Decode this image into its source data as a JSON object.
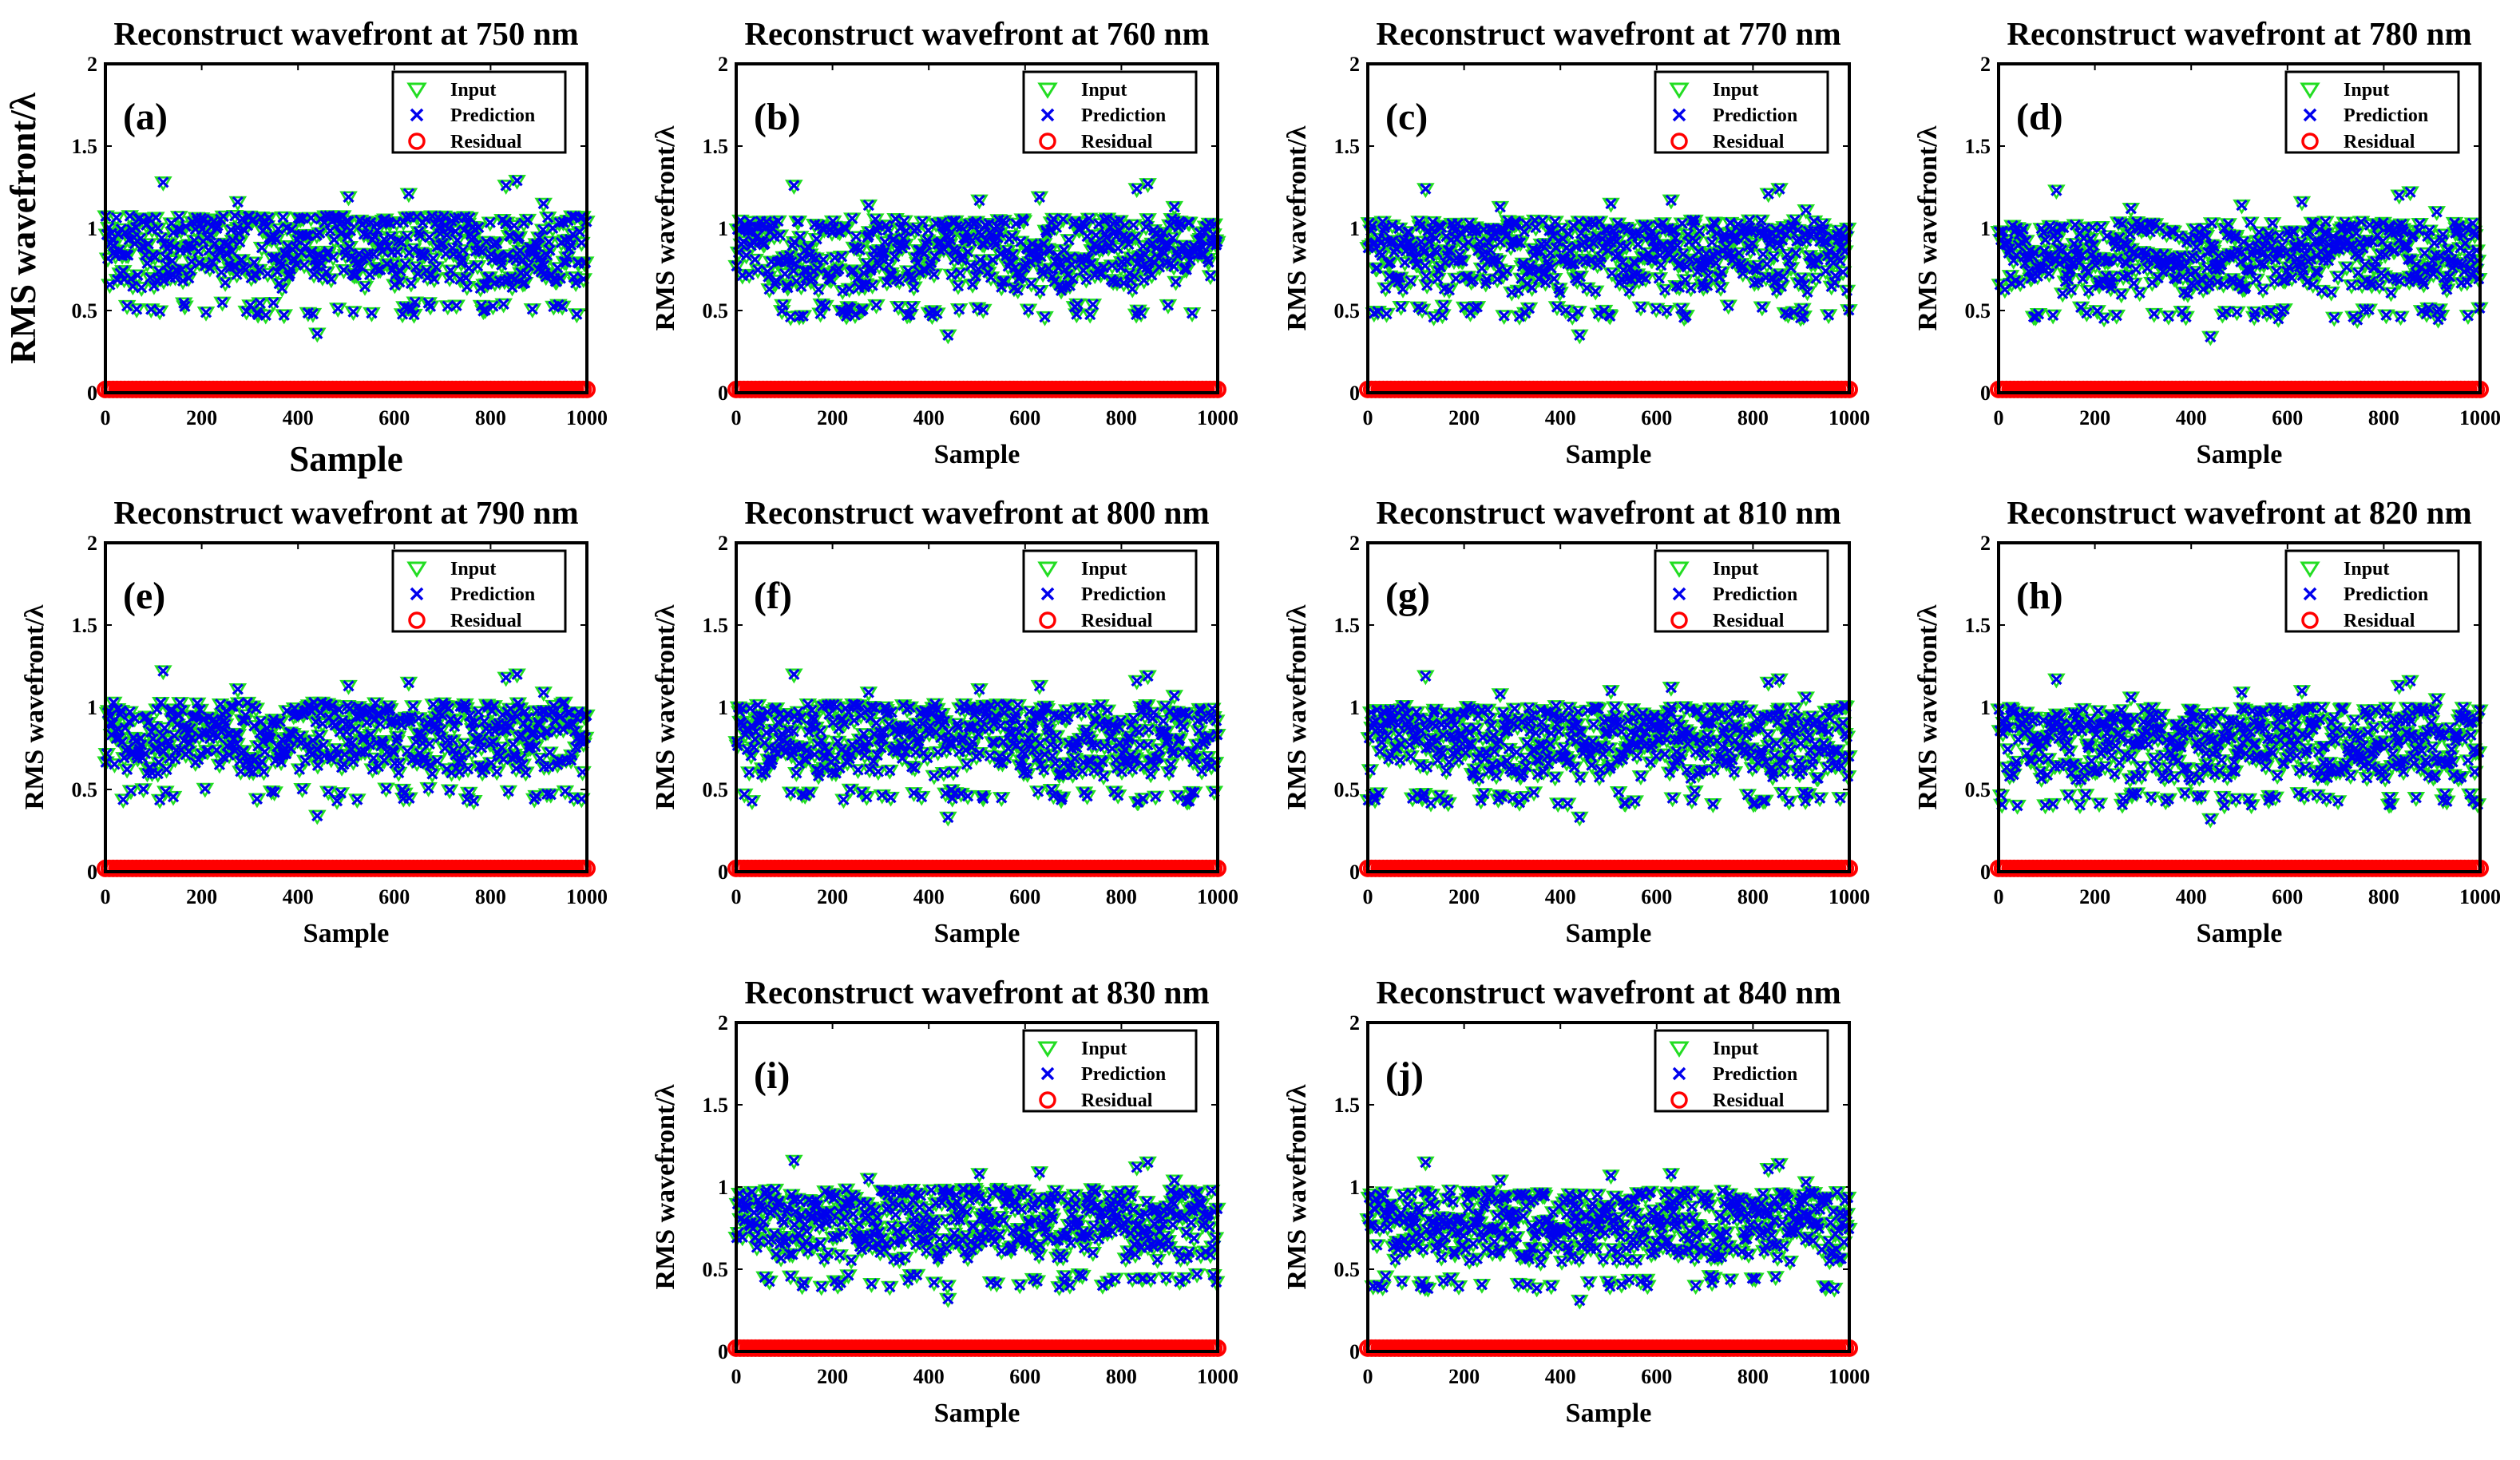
{
  "figure": {
    "markers": {
      "input": "green-triangle-down",
      "prediction": "blue-x",
      "residual": "red-circle"
    },
    "colors": {
      "input": "#22dd22",
      "prediction": "#0000ee",
      "residual": "#ff0000",
      "axis": "#000000"
    }
  },
  "chart_data": [
    {
      "panel": "(a)",
      "title": "Reconstruct wavefront at 750 nm",
      "type": "scatter",
      "xlabel": "Sample",
      "ylabel": "RMS wavefront/λ",
      "xlim": [
        0,
        1000
      ],
      "ylim": [
        0,
        2
      ],
      "xticks": [
        "0",
        "200",
        "400",
        "600",
        "800",
        "1000"
      ],
      "yticks": [
        "0",
        "0.5",
        "1",
        "1.5",
        "2"
      ],
      "legend": [
        "Input",
        "Prediction",
        "Residual"
      ],
      "legend_position": "top-right",
      "band": {
        "low": 0.55,
        "high": 1.08
      },
      "outliers": [
        [
          120,
          1.28
        ],
        [
          275,
          1.16
        ],
        [
          440,
          0.36
        ],
        [
          505,
          1.19
        ],
        [
          630,
          1.21
        ],
        [
          832,
          1.26
        ],
        [
          855,
          1.29
        ],
        [
          910,
          1.15
        ]
      ],
      "residual_level": 0.02,
      "n_samples": 1000
    },
    {
      "panel": "(b)",
      "title": "Reconstruct wavefront at 760 nm",
      "type": "scatter",
      "xlabel": "Sample",
      "ylabel": "RMS wavefront/λ",
      "xlim": [
        0,
        1000
      ],
      "ylim": [
        0,
        2
      ],
      "xticks": [
        "0",
        "200",
        "400",
        "600",
        "800",
        "1000"
      ],
      "yticks": [
        "0",
        "0.5",
        "1",
        "1.5",
        "2"
      ],
      "legend": [
        "Input",
        "Prediction",
        "Residual"
      ],
      "legend_position": "top-right",
      "band": {
        "low": 0.54,
        "high": 1.06
      },
      "outliers": [
        [
          120,
          1.26
        ],
        [
          275,
          1.14
        ],
        [
          440,
          0.35
        ],
        [
          505,
          1.17
        ],
        [
          630,
          1.19
        ],
        [
          832,
          1.24
        ],
        [
          855,
          1.27
        ],
        [
          910,
          1.13
        ]
      ],
      "residual_level": 0.02,
      "n_samples": 1000
    },
    {
      "panel": "(c)",
      "title": "Reconstruct wavefront at 770 nm",
      "type": "scatter",
      "xlabel": "Sample",
      "ylabel": "RMS wavefront/λ",
      "xlim": [
        0,
        1000
      ],
      "ylim": [
        0,
        2
      ],
      "xticks": [
        "0",
        "200",
        "400",
        "600",
        "800",
        "1000"
      ],
      "yticks": [
        "0",
        "0.5",
        "1",
        "1.5",
        "2"
      ],
      "legend": [
        "Input",
        "Prediction",
        "Residual"
      ],
      "legend_position": "top-right",
      "band": {
        "low": 0.53,
        "high": 1.05
      },
      "outliers": [
        [
          120,
          1.24
        ],
        [
          275,
          1.13
        ],
        [
          440,
          0.35
        ],
        [
          505,
          1.15
        ],
        [
          630,
          1.17
        ],
        [
          832,
          1.21
        ],
        [
          855,
          1.24
        ],
        [
          910,
          1.11
        ]
      ],
      "residual_level": 0.02,
      "n_samples": 1000
    },
    {
      "panel": "(d)",
      "title": "Reconstruct wavefront at 780 nm",
      "type": "scatter",
      "xlabel": "Sample",
      "ylabel": "RMS wavefront/λ",
      "xlim": [
        0,
        1000
      ],
      "ylim": [
        0,
        2
      ],
      "xticks": [
        "0",
        "200",
        "400",
        "600",
        "800",
        "1000"
      ],
      "yticks": [
        "0",
        "0.5",
        "1",
        "1.5",
        "2"
      ],
      "legend": [
        "Input",
        "Prediction",
        "Residual"
      ],
      "legend_position": "top-right",
      "band": {
        "low": 0.52,
        "high": 1.04
      },
      "outliers": [
        [
          120,
          1.23
        ],
        [
          275,
          1.12
        ],
        [
          440,
          0.34
        ],
        [
          505,
          1.14
        ],
        [
          630,
          1.16
        ],
        [
          832,
          1.2
        ],
        [
          855,
          1.22
        ],
        [
          910,
          1.1
        ]
      ],
      "residual_level": 0.02,
      "n_samples": 1000
    },
    {
      "panel": "(e)",
      "title": "Reconstruct wavefront at 790 nm",
      "type": "scatter",
      "xlabel": "Sample",
      "ylabel": "RMS wavefront/λ",
      "xlim": [
        0,
        1000
      ],
      "ylim": [
        0,
        2
      ],
      "xticks": [
        "0",
        "200",
        "400",
        "600",
        "800",
        "1000"
      ],
      "yticks": [
        "0",
        "0.5",
        "1",
        "1.5",
        "2"
      ],
      "legend": [
        "Input",
        "Prediction",
        "Residual"
      ],
      "legend_position": "top-right",
      "band": {
        "low": 0.51,
        "high": 1.03
      },
      "outliers": [
        [
          120,
          1.22
        ],
        [
          275,
          1.11
        ],
        [
          440,
          0.34
        ],
        [
          505,
          1.13
        ],
        [
          630,
          1.15
        ],
        [
          832,
          1.18
        ],
        [
          855,
          1.2
        ],
        [
          910,
          1.09
        ]
      ],
      "residual_level": 0.02,
      "n_samples": 1000
    },
    {
      "panel": "(f)",
      "title": "Reconstruct wavefront at 800 nm",
      "type": "scatter",
      "xlabel": "Sample",
      "ylabel": "RMS wavefront/λ",
      "xlim": [
        0,
        1000
      ],
      "ylim": [
        0,
        2
      ],
      "xticks": [
        "0",
        "200",
        "400",
        "600",
        "800",
        "1000"
      ],
      "yticks": [
        "0",
        "0.5",
        "1",
        "1.5",
        "2"
      ],
      "legend": [
        "Input",
        "Prediction",
        "Residual"
      ],
      "legend_position": "top-right",
      "band": {
        "low": 0.5,
        "high": 1.02
      },
      "outliers": [
        [
          120,
          1.2
        ],
        [
          275,
          1.09
        ],
        [
          440,
          0.33
        ],
        [
          505,
          1.11
        ],
        [
          630,
          1.13
        ],
        [
          832,
          1.16
        ],
        [
          855,
          1.19
        ],
        [
          910,
          1.07
        ]
      ],
      "residual_level": 0.02,
      "n_samples": 1000
    },
    {
      "panel": "(g)",
      "title": "Reconstruct wavefront at 810 nm",
      "type": "scatter",
      "xlabel": "Sample",
      "ylabel": "RMS wavefront/λ",
      "xlim": [
        0,
        1000
      ],
      "ylim": [
        0,
        2
      ],
      "xticks": [
        "0",
        "200",
        "400",
        "600",
        "800",
        "1000"
      ],
      "yticks": [
        "0",
        "0.5",
        "1",
        "1.5",
        "2"
      ],
      "legend": [
        "Input",
        "Prediction",
        "Residual"
      ],
      "legend_position": "top-right",
      "band": {
        "low": 0.49,
        "high": 1.01
      },
      "outliers": [
        [
          120,
          1.19
        ],
        [
          275,
          1.08
        ],
        [
          440,
          0.33
        ],
        [
          505,
          1.1
        ],
        [
          630,
          1.12
        ],
        [
          832,
          1.15
        ],
        [
          855,
          1.17
        ],
        [
          910,
          1.06
        ]
      ],
      "residual_level": 0.02,
      "n_samples": 1000
    },
    {
      "panel": "(h)",
      "title": "Reconstruct wavefront at 820 nm",
      "type": "scatter",
      "xlabel": "Sample",
      "ylabel": "RMS wavefront/λ",
      "xlim": [
        0,
        1000
      ],
      "ylim": [
        0,
        2
      ],
      "xticks": [
        "0",
        "200",
        "400",
        "600",
        "800",
        "1000"
      ],
      "yticks": [
        "0",
        "0.5",
        "1",
        "1.5",
        "2"
      ],
      "legend": [
        "Input",
        "Prediction",
        "Residual"
      ],
      "legend_position": "top-right",
      "band": {
        "low": 0.48,
        "high": 1.0
      },
      "outliers": [
        [
          120,
          1.17
        ],
        [
          275,
          1.06
        ],
        [
          440,
          0.32
        ],
        [
          505,
          1.09
        ],
        [
          630,
          1.1
        ],
        [
          832,
          1.13
        ],
        [
          855,
          1.16
        ],
        [
          910,
          1.05
        ]
      ],
      "residual_level": 0.02,
      "n_samples": 1000
    },
    {
      "panel": "(i)",
      "title": "Reconstruct wavefront at 830 nm",
      "type": "scatter",
      "xlabel": "Sample",
      "ylabel": "RMS wavefront/λ",
      "xlim": [
        0,
        1000
      ],
      "ylim": [
        0,
        2
      ],
      "xticks": [
        "0",
        "200",
        "400",
        "600",
        "800",
        "1000"
      ],
      "yticks": [
        "0",
        "0.5",
        "1",
        "1.5",
        "2"
      ],
      "legend": [
        "Input",
        "Prediction",
        "Residual"
      ],
      "legend_position": "top-right",
      "band": {
        "low": 0.47,
        "high": 0.99
      },
      "outliers": [
        [
          120,
          1.16
        ],
        [
          275,
          1.05
        ],
        [
          440,
          0.32
        ],
        [
          505,
          1.08
        ],
        [
          630,
          1.09
        ],
        [
          832,
          1.12
        ],
        [
          855,
          1.15
        ],
        [
          910,
          1.04
        ]
      ],
      "residual_level": 0.02,
      "n_samples": 1000
    },
    {
      "panel": "(j)",
      "title": "Reconstruct wavefront at 840 nm",
      "type": "scatter",
      "xlabel": "Sample",
      "ylabel": "RMS wavefront/λ",
      "xlim": [
        0,
        1000
      ],
      "ylim": [
        0,
        2
      ],
      "xticks": [
        "0",
        "200",
        "400",
        "600",
        "800",
        "1000"
      ],
      "yticks": [
        "0",
        "0.5",
        "1",
        "1.5",
        "2"
      ],
      "legend": [
        "Input",
        "Prediction",
        "Residual"
      ],
      "legend_position": "top-right",
      "band": {
        "low": 0.46,
        "high": 0.98
      },
      "outliers": [
        [
          120,
          1.15
        ],
        [
          275,
          1.04
        ],
        [
          440,
          0.31
        ],
        [
          505,
          1.07
        ],
        [
          630,
          1.08
        ],
        [
          832,
          1.11
        ],
        [
          855,
          1.14
        ],
        [
          910,
          1.03
        ]
      ],
      "residual_level": 0.02,
      "n_samples": 1000
    }
  ]
}
